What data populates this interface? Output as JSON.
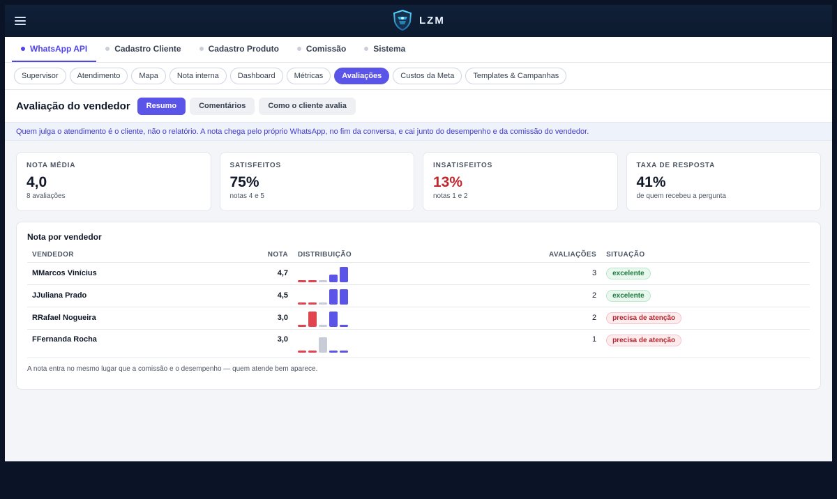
{
  "colors": {
    "accent": "#5b54e8",
    "bad": "#c0262d",
    "bar_low": "#e0444f",
    "bar_mid": "#c7ccd6",
    "bar_high": "#5b54e8"
  },
  "topbar": {
    "brand": "LZM",
    "menu_icon": "hamburger-icon"
  },
  "main_tabs": [
    {
      "label": "WhatsApp API",
      "active": true
    },
    {
      "label": "Cadastro Cliente",
      "active": false
    },
    {
      "label": "Cadastro Produto",
      "active": false
    },
    {
      "label": "Comissão",
      "active": false
    },
    {
      "label": "Sistema",
      "active": false
    }
  ],
  "sub_tabs": [
    {
      "label": "Supervisor",
      "active": false
    },
    {
      "label": "Atendimento",
      "active": false
    },
    {
      "label": "Mapa",
      "active": false
    },
    {
      "label": "Nota interna",
      "active": false
    },
    {
      "label": "Dashboard",
      "active": false
    },
    {
      "label": "Métricas",
      "active": false
    },
    {
      "label": "Avaliações",
      "active": true
    },
    {
      "label": "Custos da Meta",
      "active": false
    },
    {
      "label": "Templates & Campanhas",
      "active": false
    }
  ],
  "header": {
    "title": "Avaliação do vendedor",
    "segments": [
      {
        "label": "Resumo",
        "active": true
      },
      {
        "label": "Comentários",
        "active": false
      },
      {
        "label": "Como o cliente avalia",
        "active": false
      }
    ]
  },
  "banner": "Quem julga o atendimento é o cliente, não o relatório. A nota chega pelo próprio WhatsApp, no fim da conversa, e cai junto do desempenho e da comissão do vendedor.",
  "kpis": [
    {
      "label": "NOTA MÉDIA",
      "value": "4,0",
      "sub": "8 avaliações",
      "tone": "normal"
    },
    {
      "label": "SATISFEITOS",
      "value": "75%",
      "sub": "notas 4 e 5",
      "tone": "normal"
    },
    {
      "label": "INSATISFEITOS",
      "value": "13%",
      "sub": "notas 1 e 2",
      "tone": "bad"
    },
    {
      "label": "TAXA DE RESPOSTA",
      "value": "41%",
      "sub": "de quem recebeu a pergunta",
      "tone": "normal"
    }
  ],
  "table": {
    "title": "Nota por vendedor",
    "columns": {
      "vendor": "VENDEDOR",
      "note": "NOTA",
      "dist": "DISTRIBUIÇÃO",
      "count": "AVALIAÇÕES",
      "status": "SITUAÇÃO"
    },
    "rows": [
      {
        "name": "MMarcos Vinícius",
        "note": "4,7",
        "dist": [
          0,
          0,
          0,
          1,
          2
        ],
        "count": "3",
        "status": "excelente",
        "tone": "good"
      },
      {
        "name": "JJuliana Prado",
        "note": "4,5",
        "dist": [
          0,
          0,
          0,
          1,
          1
        ],
        "count": "2",
        "status": "excelente",
        "tone": "good"
      },
      {
        "name": "RRafael Nogueira",
        "note": "3,0",
        "dist": [
          0,
          1,
          0,
          1,
          0
        ],
        "count": "2",
        "status": "precisa de atenção",
        "tone": "warn"
      },
      {
        "name": "FFernanda Rocha",
        "note": "3,0",
        "dist": [
          0,
          0,
          1,
          0,
          0
        ],
        "count": "1",
        "status": "precisa de atenção",
        "tone": "warn"
      }
    ],
    "footnote": "A nota entra no mesmo lugar que a comissão e o desempenho — quem atende bem aparece."
  }
}
